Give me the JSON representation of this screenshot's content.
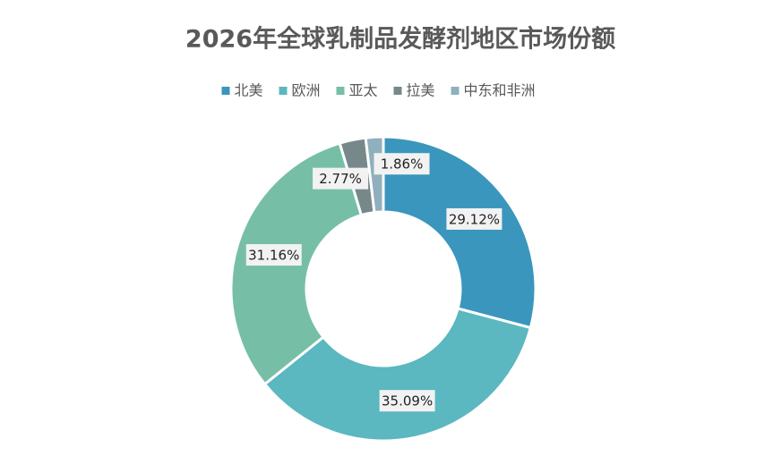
{
  "chart_data": {
    "type": "donut",
    "title": "2026年全球乳制品发酵剂地区市场份额",
    "categories": [
      "北美",
      "欧洲",
      "亚太",
      "拉美",
      "中东和非洲"
    ],
    "values": [
      29.12,
      35.09,
      31.16,
      2.77,
      1.86
    ],
    "value_labels": [
      "29.12%",
      "35.09%",
      "31.16%",
      "2.77%",
      "1.86%"
    ],
    "colors": [
      "#3a96bc",
      "#5bb7c0",
      "#76bfa6",
      "#76888a",
      "#8fb0bc"
    ],
    "legend": "top"
  }
}
